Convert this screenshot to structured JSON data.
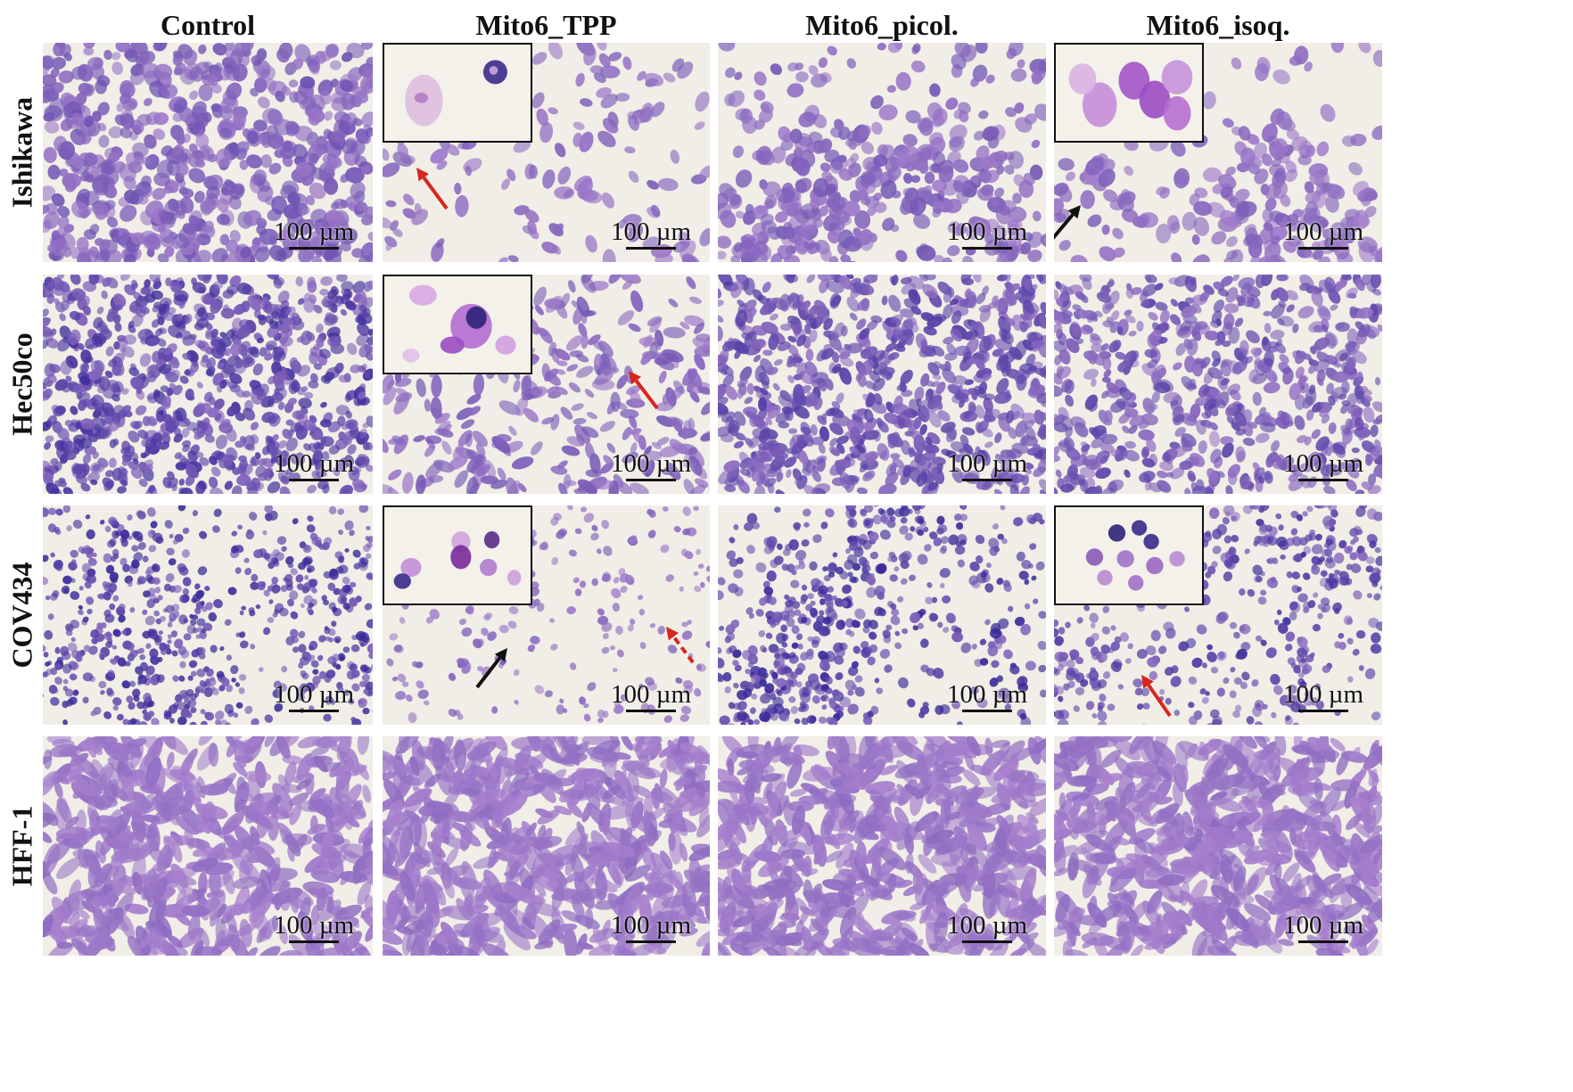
{
  "figure": {
    "columns": [
      "Control",
      "Mito6_TPP",
      "Mito6_picol.",
      "Mito6_isoq."
    ],
    "rows": [
      "Ishikawa",
      "Hec50co",
      "COV434",
      "HFF-1"
    ],
    "scale_bar_label": "100 µm",
    "colors": {
      "background": "#f0eee6",
      "stain_light": "#b98ed6",
      "stain_dark": "#3b2b9a",
      "arrow_red": "#d7261e",
      "arrow_black": "#111111"
    }
  }
}
